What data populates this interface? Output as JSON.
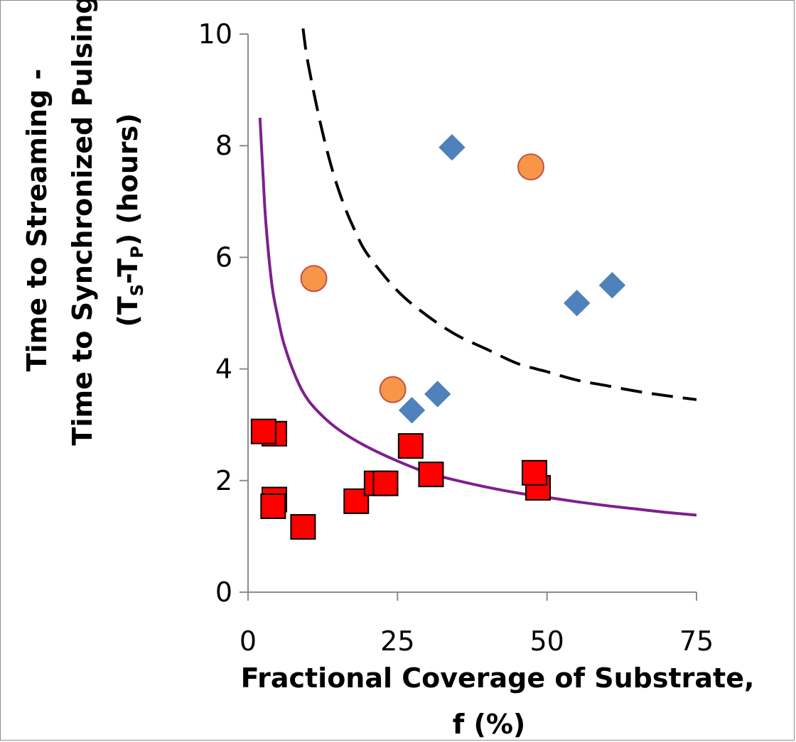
{
  "chart_data": {
    "type": "scatter",
    "title": "",
    "xlabel": {
      "line1": "Fractional Coverage of Substrate,",
      "line2": "f (%)"
    },
    "ylabel": {
      "line1": "Time to Streaming -",
      "line2_prefix": "Time to Synchronized Pulsing",
      "line3_open": "(T",
      "line3_sub1": "S",
      "line3_mid": "-T",
      "line3_sub2": "P",
      "line3_close": ") (hours)"
    },
    "xlim": [
      0,
      75
    ],
    "ylim": [
      0,
      10
    ],
    "x_ticks": [
      0,
      25,
      50,
      75
    ],
    "x_tick_labels": [
      "0",
      "25",
      "50",
      "75"
    ],
    "y_ticks": [
      0,
      2,
      4,
      6,
      8,
      10
    ],
    "y_tick_labels": [
      "0",
      "2",
      "4",
      "6",
      "8",
      "10"
    ],
    "grid": false,
    "legend": "none",
    "series": [
      {
        "marker": "diamond",
        "color": "#4f81bd",
        "points": [
          [
            34.1,
            7.97
          ],
          [
            27.4,
            3.26
          ],
          [
            31.7,
            3.55
          ],
          [
            55.0,
            5.18
          ],
          [
            60.9,
            5.5
          ]
        ]
      },
      {
        "marker": "circle",
        "color": "#f79646",
        "stroke": "#c0504d",
        "points": [
          [
            11.0,
            5.62
          ],
          [
            24.2,
            3.63
          ],
          [
            47.3,
            7.62
          ]
        ]
      },
      {
        "marker": "square",
        "color": "#ff0000",
        "stroke": "#000000",
        "points": [
          [
            4.4,
            2.84
          ],
          [
            2.6,
            2.88
          ],
          [
            4.4,
            1.66
          ],
          [
            4.2,
            1.54
          ],
          [
            9.2,
            1.17
          ],
          [
            18.1,
            1.63
          ],
          [
            21.5,
            1.95
          ],
          [
            23.0,
            1.95
          ],
          [
            27.2,
            2.62
          ],
          [
            30.6,
            2.11
          ],
          [
            48.5,
            1.87
          ],
          [
            47.9,
            2.14
          ]
        ]
      }
    ],
    "curves": [
      {
        "style": "solid",
        "color": "#7f1f8f",
        "points": [
          [
            2.0,
            8.5
          ],
          [
            2.5,
            7.5
          ],
          [
            3.0,
            6.6
          ],
          [
            4.0,
            5.5
          ],
          [
            5.0,
            4.92
          ],
          [
            6.0,
            4.45
          ],
          [
            8.0,
            3.85
          ],
          [
            10.0,
            3.45
          ],
          [
            13.0,
            3.1
          ],
          [
            16.0,
            2.85
          ],
          [
            20.0,
            2.6
          ],
          [
            25.0,
            2.35
          ],
          [
            30.0,
            2.14
          ],
          [
            35.0,
            2.0
          ],
          [
            40.0,
            1.88
          ],
          [
            45.0,
            1.78
          ],
          [
            50.0,
            1.7
          ],
          [
            55.0,
            1.62
          ],
          [
            60.0,
            1.55
          ],
          [
            65.0,
            1.49
          ],
          [
            70.0,
            1.43
          ],
          [
            75.0,
            1.38
          ]
        ]
      },
      {
        "style": "dashed",
        "color": "#000000",
        "points": [
          [
            9.2,
            10.1
          ],
          [
            10.0,
            9.5
          ],
          [
            12.0,
            8.45
          ],
          [
            14.0,
            7.6
          ],
          [
            16.0,
            6.95
          ],
          [
            18.0,
            6.45
          ],
          [
            20.0,
            6.05
          ],
          [
            25.0,
            5.4
          ],
          [
            30.0,
            4.95
          ],
          [
            35.0,
            4.6
          ],
          [
            40.0,
            4.35
          ],
          [
            45.0,
            4.1
          ],
          [
            50.0,
            3.95
          ],
          [
            55.0,
            3.8
          ],
          [
            60.0,
            3.7
          ],
          [
            65.0,
            3.6
          ],
          [
            70.0,
            3.52
          ],
          [
            75.0,
            3.45
          ]
        ]
      }
    ]
  }
}
